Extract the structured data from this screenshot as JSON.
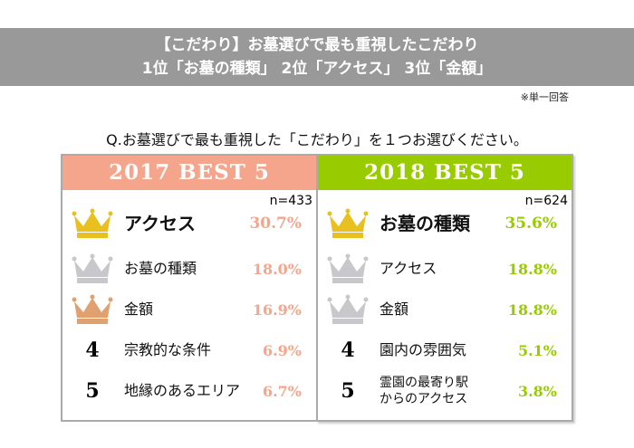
{
  "banner": {
    "line1": "【こだわり】お墓選びで最も重視したこだわり",
    "line2": "1位「お墓の種類」 2位「アクセス」 3位「金額」"
  },
  "note": "※単一回答",
  "question": "Q.お墓選びで最も重視した「こだわり」を１つお選びください。",
  "colors": {
    "2017": "#f4a58b",
    "2018": "#99cc00",
    "gold": "#e8c020",
    "silver": "#c8c8cc",
    "bronze": "#e0a070"
  },
  "panels": [
    {
      "title": "2017 BEST 5",
      "n": "n=433",
      "items": [
        {
          "rank": "1",
          "icon": "gold-crown-icon",
          "label": "アクセス",
          "pct": "30.7%"
        },
        {
          "rank": "2",
          "icon": "silver-crown-icon",
          "label": "お墓の種類",
          "pct": "18.0%"
        },
        {
          "rank": "3",
          "icon": "bronze-crown-icon",
          "label": "金額",
          "pct": "16.9%"
        },
        {
          "rank": "4",
          "label": "宗教的な条件",
          "pct": "6.9%"
        },
        {
          "rank": "5",
          "label": "地縁のあるエリア",
          "pct": "6.7%"
        }
      ]
    },
    {
      "title": "2018 BEST 5",
      "n": "n=624",
      "items": [
        {
          "rank": "1",
          "icon": "gold-crown-icon",
          "label": "お墓の種類",
          "pct": "35.6%"
        },
        {
          "rank": "2",
          "icon": "silver-crown-icon",
          "label": "アクセス",
          "pct": "18.8%"
        },
        {
          "rank": "3",
          "icon": "silver-crown-icon",
          "label": "金額",
          "pct": "18.8%"
        },
        {
          "rank": "4",
          "label": "園内の雰囲気",
          "pct": "5.1%"
        },
        {
          "rank": "5",
          "label": "霊園の最寄り駅\nからのアクセス",
          "pct": "3.8%"
        }
      ]
    }
  ]
}
